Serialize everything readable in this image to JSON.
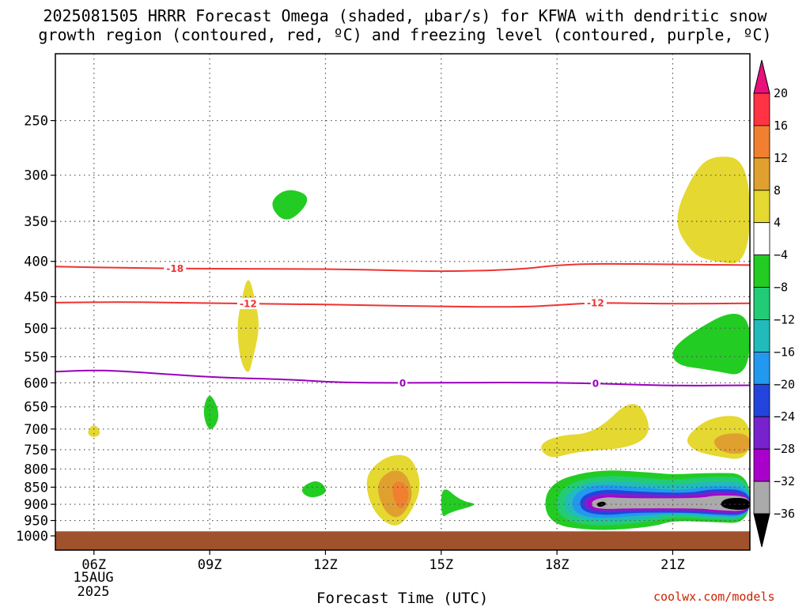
{
  "header": {
    "title_line1": "2025081505 HRRR Forecast Omega (shaded, µbar/s) for KFWA with dendritic snow",
    "title_line2": "growth region (contoured, red, ºC) and freezing level (contoured, purple, ºC)"
  },
  "footer": {
    "x_title": "Forecast Time (UTC)",
    "date_day": "15AUG",
    "date_year": "2025",
    "credit": "coolwx.com/models"
  },
  "chart_data": {
    "type": "contour",
    "x_ticks": [
      {
        "hour": 6,
        "label": "06Z"
      },
      {
        "hour": 9,
        "label": "09Z"
      },
      {
        "hour": 12,
        "label": "12Z"
      },
      {
        "hour": 15,
        "label": "15Z"
      },
      {
        "hour": 18,
        "label": "18Z"
      },
      {
        "hour": 21,
        "label": "21Z"
      }
    ],
    "x_range_hours": [
      5,
      23
    ],
    "y_axis": "pressure (hPa), log scale",
    "y_range_hpa": [
      1000,
      200
    ],
    "y_ticks": [
      250,
      300,
      350,
      400,
      450,
      500,
      550,
      600,
      650,
      700,
      750,
      800,
      850,
      900,
      950,
      1000
    ],
    "grid": true,
    "colorbar": {
      "labels": [
        "20",
        "16",
        "12",
        "8",
        "4",
        "−4",
        "−8",
        "−12",
        "−16",
        "−20",
        "−24",
        "−28",
        "−32",
        "−36"
      ],
      "colors": [
        "#ff3344",
        "#f08030",
        "#e0a030",
        "#e5d830",
        "#ffffff",
        "#22cc22",
        "#22cc77",
        "#22bbbb",
        "#2299ee",
        "#2244dd",
        "#7722cc",
        "#aa00cc",
        "#aaaaaa"
      ],
      "top_arrow_color": "#e8107a",
      "bottom_arrow_color": "#000000"
    },
    "red_isotherms": [
      {
        "label": "-18",
        "label_hour": 8.1,
        "points": [
          [
            5,
            407
          ],
          [
            7,
            409
          ],
          [
            9,
            410
          ],
          [
            11,
            410
          ],
          [
            13,
            411
          ],
          [
            15,
            414
          ],
          [
            17,
            411
          ],
          [
            18,
            405
          ],
          [
            19,
            403
          ],
          [
            21,
            404
          ],
          [
            23,
            405
          ]
        ]
      },
      {
        "label": "-12",
        "label_hour": 10,
        "label2_hour": 19,
        "points": [
          [
            5,
            459
          ],
          [
            7,
            458
          ],
          [
            9,
            460
          ],
          [
            11,
            461
          ],
          [
            13,
            463
          ],
          [
            15,
            465
          ],
          [
            17,
            466
          ],
          [
            18,
            463
          ],
          [
            19,
            459
          ],
          [
            21,
            461
          ],
          [
            23,
            460
          ]
        ]
      }
    ],
    "freezing_level": {
      "label": "0",
      "label_hour": 14,
      "label2_hour": 19,
      "points": [
        [
          5,
          578
        ],
        [
          6,
          575
        ],
        [
          7,
          578
        ],
        [
          9,
          589
        ],
        [
          11,
          593
        ],
        [
          12,
          598
        ],
        [
          13,
          600
        ],
        [
          15,
          600
        ],
        [
          17,
          599
        ],
        [
          19,
          601
        ],
        [
          21,
          606
        ],
        [
          23,
          605
        ]
      ]
    },
    "omega_regions": [
      {
        "name": "green-11z",
        "value": "-4",
        "color": "#22cc22",
        "points": [
          [
            10.5,
            330
          ],
          [
            11,
            312
          ],
          [
            11.7,
            323
          ],
          [
            11,
            355
          ]
        ]
      },
      {
        "name": "yellow-10z",
        "value": "4",
        "color": "#e5d830",
        "points": [
          [
            10,
            415
          ],
          [
            10.2,
            460
          ],
          [
            10.3,
            500
          ],
          [
            10.1,
            560
          ],
          [
            10,
            585
          ],
          [
            9.8,
            560
          ],
          [
            9.7,
            500
          ],
          [
            9.8,
            460
          ]
        ]
      },
      {
        "name": "yellow-06z",
        "value": "4",
        "color": "#e5d830",
        "points": [
          [
            6,
            685
          ],
          [
            6.2,
            710
          ],
          [
            6,
            722
          ],
          [
            5.8,
            710
          ]
        ]
      },
      {
        "name": "green-09z",
        "value": "-4",
        "color": "#22cc22",
        "points": [
          [
            8.8,
            660
          ],
          [
            9,
            615
          ],
          [
            9.3,
            670
          ],
          [
            9,
            712
          ]
        ]
      },
      {
        "name": "green-11-12z",
        "value": "-4",
        "color": "#22cc22",
        "points": [
          [
            11.3,
            855
          ],
          [
            11.8,
            825
          ],
          [
            12.1,
            865
          ],
          [
            11.6,
            885
          ]
        ]
      },
      {
        "name": "green-15z",
        "value": "-4",
        "color": "#22cc22",
        "points": [
          [
            15,
            840
          ],
          [
            15.5,
            890
          ],
          [
            16,
            900
          ],
          [
            15.2,
            925
          ],
          [
            15,
            945
          ]
        ]
      },
      {
        "name": "yellow-13-14z",
        "value": "4",
        "color": "#e5d830",
        "points": [
          [
            13,
            820
          ],
          [
            13.5,
            770
          ],
          [
            14,
            760
          ],
          [
            14.3,
            780
          ],
          [
            14.5,
            850
          ],
          [
            14.2,
            930
          ],
          [
            13.8,
            980
          ],
          [
            13.2,
            920
          ]
        ]
      },
      {
        "name": "orange-14z",
        "value": "8",
        "color": "#e0a030",
        "points": [
          [
            13.3,
            840
          ],
          [
            13.7,
            800
          ],
          [
            14.1,
            810
          ],
          [
            14.3,
            880
          ],
          [
            13.9,
            950
          ],
          [
            13.5,
            920
          ]
        ]
      },
      {
        "name": "darkorange-14z",
        "value": "12",
        "color": "#f08030",
        "points": [
          [
            13.7,
            840
          ],
          [
            14,
            830
          ],
          [
            14.2,
            870
          ],
          [
            14,
            920
          ],
          [
            13.8,
            900
          ]
        ]
      },
      {
        "name": "yellow-18-20z",
        "value": "4",
        "color": "#e5d830",
        "points": [
          [
            17.5,
            740
          ],
          [
            18,
            715
          ],
          [
            19,
            710
          ],
          [
            20,
            625
          ],
          [
            20.5,
            700
          ],
          [
            20,
            745
          ],
          [
            18.5,
            755
          ],
          [
            17.8,
            775
          ]
        ]
      },
      {
        "name": "yellow-21z-upper",
        "value": "4",
        "color": "#e5d830",
        "points": [
          [
            21,
            350
          ],
          [
            21.5,
            300
          ],
          [
            22,
            280
          ],
          [
            23,
            285
          ],
          [
            23,
            405
          ],
          [
            22,
            400
          ],
          [
            21.5,
            390
          ]
        ]
      },
      {
        "name": "green-21z",
        "value": "-4",
        "color": "#22cc22",
        "points": [
          [
            21,
            525
          ],
          [
            23,
            455
          ],
          [
            23,
            590
          ],
          [
            22,
            575
          ],
          [
            21,
            565
          ]
        ]
      },
      {
        "name": "yellow-21-23z",
        "value": "4",
        "color": "#e5d830",
        "points": [
          [
            21.3,
            720
          ],
          [
            22,
            670
          ],
          [
            23,
            670
          ],
          [
            23,
            780
          ],
          [
            22,
            765
          ],
          [
            21.5,
            750
          ]
        ]
      },
      {
        "name": "orange-22z",
        "value": "8",
        "color": "#e0a030",
        "points": [
          [
            22,
            730
          ],
          [
            22.3,
            710
          ],
          [
            23,
            710
          ],
          [
            23,
            760
          ],
          [
            22.3,
            760
          ]
        ]
      }
    ],
    "omega_bands": [
      {
        "name": "band-green",
        "value": "-4",
        "color": "#22cc22",
        "hours": [
          17.7,
          19,
          20.5,
          21,
          22,
          23
        ],
        "top": [
          840,
          800,
          810,
          815,
          810,
          812
        ],
        "bottom": [
          960,
          985,
          970,
          950,
          955,
          960
        ]
      },
      {
        "name": "band-teal",
        "value": "-8",
        "color": "#22cc77",
        "hours": [
          18,
          19,
          20.4,
          21,
          22,
          23
        ],
        "top": [
          855,
          815,
          825,
          830,
          820,
          822
        ],
        "bottom": [
          945,
          970,
          955,
          940,
          945,
          950
        ]
      },
      {
        "name": "band-cyan",
        "value": "-12",
        "color": "#22bbbb",
        "hours": [
          18.2,
          19,
          20.3,
          21,
          22,
          23
        ],
        "top": [
          865,
          828,
          838,
          845,
          832,
          835
        ],
        "bottom": [
          930,
          955,
          945,
          930,
          940,
          945
        ]
      },
      {
        "name": "band-blue",
        "value": "-16",
        "color": "#2299ee",
        "hours": [
          18.4,
          19,
          20.1,
          21.2,
          22,
          23
        ],
        "top": [
          870,
          840,
          850,
          860,
          845,
          850
        ],
        "bottom": [
          925,
          945,
          935,
          925,
          935,
          940
        ]
      },
      {
        "name": "band-darkblue",
        "value": "-20",
        "color": "#2244dd",
        "hours": [
          18.6,
          19.2,
          20,
          21.4,
          22,
          23
        ],
        "top": [
          875,
          855,
          862,
          868,
          855,
          858
        ],
        "bottom": [
          920,
          935,
          925,
          925,
          930,
          935
        ]
      },
      {
        "name": "band-purple",
        "value": "-24",
        "color": "#7722cc",
        "hours": [
          18.7,
          19.3,
          19.9,
          21.5,
          22,
          23
        ],
        "top": [
          880,
          865,
          870,
          872,
          862,
          866
        ],
        "bottom": [
          915,
          925,
          920,
          920,
          925,
          930
        ]
      },
      {
        "name": "band-violet",
        "value": "-28",
        "color": "#aa00cc",
        "hours": [
          18.8,
          19.3,
          19.8,
          21.6,
          22,
          23
        ],
        "top": [
          885,
          872,
          878,
          878,
          868,
          872
        ],
        "bottom": [
          912,
          918,
          915,
          915,
          922,
          926
        ]
      },
      {
        "name": "band-gray",
        "value": "-32",
        "color": "#aaaaaa",
        "hours": [
          18.9,
          19.3,
          19.7,
          21.7,
          22.1,
          23
        ],
        "top": [
          888,
          878,
          882,
          882,
          873,
          875
        ],
        "bottom": [
          910,
          915,
          912,
          912,
          918,
          922
        ]
      }
    ],
    "omega_cores": [
      {
        "name": "core-19z",
        "value": "-36",
        "color": "#000000",
        "points": [
          [
            19,
            898
          ],
          [
            19.2,
            890
          ],
          [
            19.3,
            900
          ],
          [
            19.1,
            910
          ]
        ]
      },
      {
        "name": "core-22z",
        "value": "-36",
        "color": "#000000",
        "points": [
          [
            22.2,
            900
          ],
          [
            22.4,
            880
          ],
          [
            23,
            882
          ],
          [
            23,
            918
          ],
          [
            22.4,
            915
          ]
        ]
      }
    ],
    "terrain": {
      "color": "#a0522d",
      "top_hpa": 985
    }
  }
}
